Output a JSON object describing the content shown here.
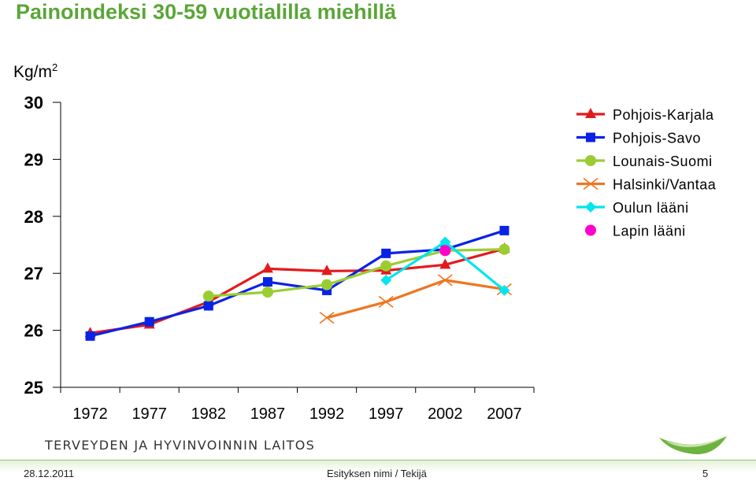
{
  "slide": {
    "title": "Painoindeksi 30-59 vuotialilla miehillä",
    "unit_base": "Kg/m",
    "unit_sup": "2",
    "organization": "TERVEYDEN JA HYVINVOINNIN LAITOS",
    "footer_date": "28.12.2011",
    "footer_author": "Esityksen nimi / Tekijä",
    "footer_page": "5"
  },
  "chart_data": {
    "type": "line",
    "title": "Painoindeksi 30-59 vuotialilla miehillä",
    "ylabel": "Kg/m2",
    "xlabel": "",
    "categories": [
      "1972",
      "1977",
      "1982",
      "1987",
      "1992",
      "1997",
      "2002",
      "2007"
    ],
    "ylim": [
      25,
      30
    ],
    "yticks": [
      "25",
      "26",
      "27",
      "28",
      "29",
      "30"
    ],
    "grid": false,
    "legend_position": "top-right",
    "series": [
      {
        "name": "Pohjois-Karjala",
        "color": "#e31a1c",
        "marker": "triangle",
        "values": [
          25.95,
          26.1,
          26.5,
          27.08,
          27.04,
          27.05,
          27.15,
          27.43
        ]
      },
      {
        "name": "Pohjois-Savo",
        "color": "#0a22e6",
        "marker": "square",
        "values": [
          25.9,
          26.15,
          26.43,
          26.85,
          26.7,
          27.35,
          27.42,
          27.75
        ]
      },
      {
        "name": "Lounais-Suomi",
        "color": "#9acd32",
        "marker": "circle",
        "values": [
          null,
          null,
          26.6,
          26.67,
          26.8,
          27.13,
          27.4,
          27.42
        ]
      },
      {
        "name": "Halsinki/Vantaa",
        "color": "#ee7621",
        "marker": "x",
        "values": [
          null,
          null,
          null,
          null,
          26.22,
          26.5,
          26.88,
          26.72
        ]
      },
      {
        "name": "Oulun lääni",
        "color": "#00e5ee",
        "marker": "diamond",
        "values": [
          null,
          null,
          null,
          null,
          null,
          26.88,
          27.55,
          26.7
        ]
      },
      {
        "name": "Lapin lääni",
        "color": "#ff00cc",
        "marker": "circle",
        "values": [
          null,
          null,
          null,
          null,
          null,
          null,
          27.4,
          null
        ]
      }
    ]
  }
}
